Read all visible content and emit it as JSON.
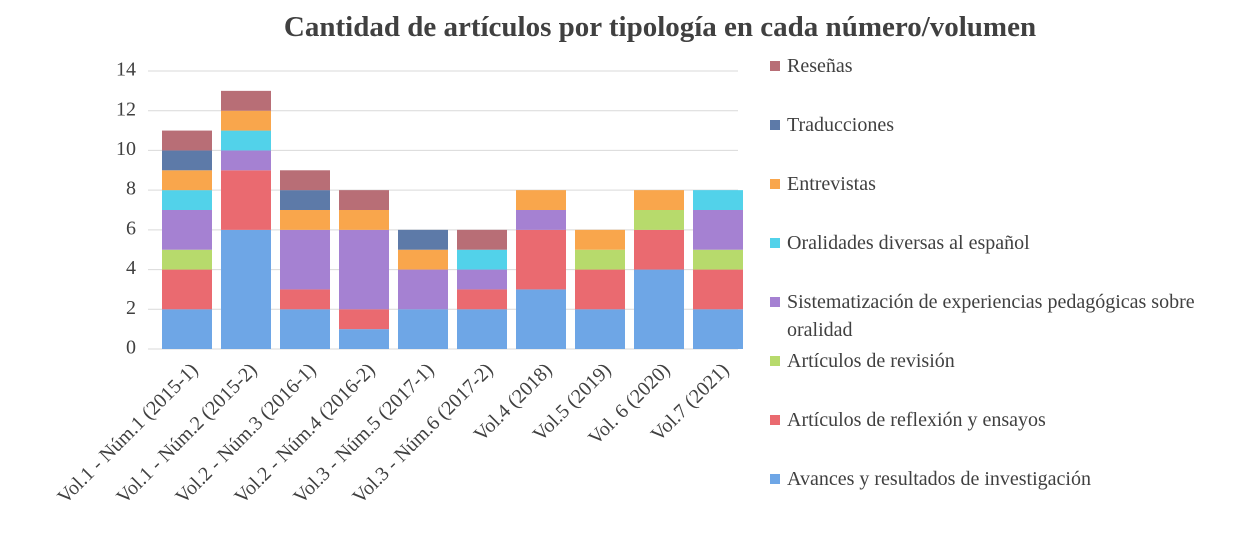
{
  "chart_data": {
    "type": "stacked_bar",
    "title": "Cantidad de artículos por tipología en cada número/volumen",
    "categories": [
      "Vol.1 - Núm.1 (2015-1)",
      "Vol.1 - Núm.2 (2015-2)",
      "Vol.2 - Núm.3 (2016-1)",
      "Vol.2 - Núm.4 (2016-2)",
      "Vol.3 - Núm.5 (2017-1)",
      "Vol.3 - Núm.6 (2017-2)",
      "Vol.4 (2018)",
      "Vol.5 (2019)",
      "Vol. 6 (2020)",
      "Vol.7 (2021)"
    ],
    "series": [
      {
        "name": "Avances y resultados de investigación",
        "color": "#6ea6e6",
        "values": [
          2,
          6,
          2,
          1,
          2,
          2,
          3,
          2,
          4,
          2
        ]
      },
      {
        "name": "Artículos de reflexión y ensayos",
        "color": "#ea6a70",
        "values": [
          2,
          3,
          1,
          1,
          0,
          1,
          3,
          2,
          2,
          2
        ]
      },
      {
        "name": "Artículos de revisión",
        "color": "#b7da6c",
        "values": [
          1,
          0,
          0,
          0,
          0,
          0,
          0,
          1,
          1,
          1
        ]
      },
      {
        "name": "Sistematización de experiencias pedagógicas sobre oralidad",
        "color": "#a581d2",
        "values": [
          2,
          1,
          3,
          4,
          2,
          1,
          1,
          0,
          0,
          2
        ]
      },
      {
        "name": "Oralidades diversas al español",
        "color": "#52d2ea",
        "values": [
          1,
          1,
          0,
          0,
          0,
          1,
          0,
          0,
          0,
          1
        ]
      },
      {
        "name": "Entrevistas",
        "color": "#f9a64c",
        "values": [
          1,
          1,
          1,
          1,
          1,
          0,
          1,
          1,
          1,
          0
        ]
      },
      {
        "name": "Traducciones",
        "color": "#5d7aa8",
        "values": [
          1,
          0,
          1,
          0,
          1,
          0,
          0,
          0,
          0,
          0
        ]
      },
      {
        "name": "Reseñas",
        "color": "#b86e76",
        "values": [
          1,
          1,
          1,
          1,
          0,
          1,
          0,
          0,
          0,
          0
        ]
      }
    ],
    "ylim": [
      0,
      14
    ],
    "yticks": [
      0,
      2,
      4,
      6,
      8,
      10,
      12,
      14
    ],
    "grid": true,
    "legend": "right"
  }
}
